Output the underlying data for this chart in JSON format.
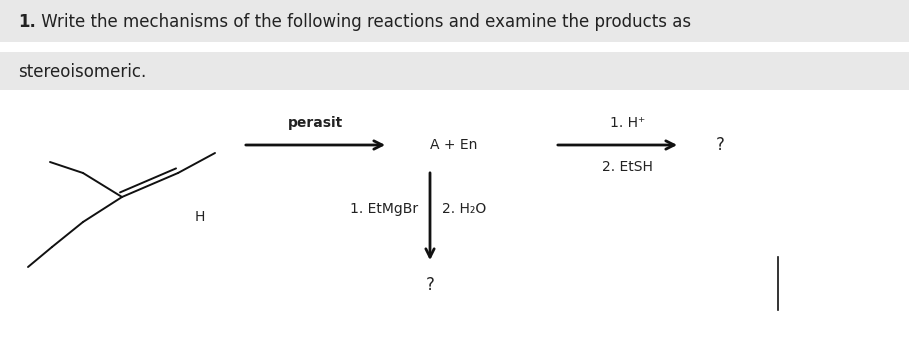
{
  "title_bold": "1.",
  "title_text": " Write the mechanisms of the following reactions and examine the products as",
  "subtitle_text": "stereoisomeric.",
  "bg_stripe1_color": "#e8e8e8",
  "molecule_label_H": "H",
  "arrow1_label_top": "perasit",
  "arrow1_label_bottom": "A + En",
  "arrow2_label_top": "1. H⁺",
  "arrow2_label_bottom": "2. EtSH",
  "arrow2_result": "?",
  "arrow3_label_left": "1. EtMgBr",
  "arrow3_label_right": "2. H₂O",
  "arrow3_result": "?",
  "font_color": "#222222",
  "arrow_color": "#111111",
  "line_color": "#111111"
}
